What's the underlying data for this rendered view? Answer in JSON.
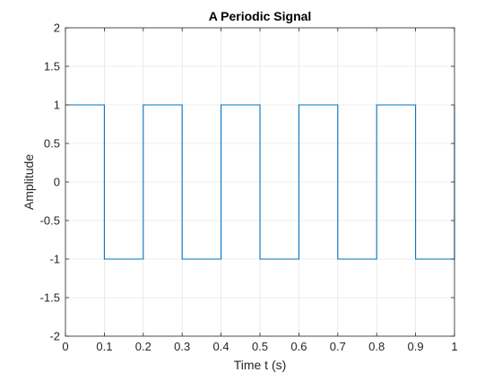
{
  "chart_data": {
    "type": "line",
    "title": "A Periodic Signal",
    "xlabel": "Time t (s)",
    "ylabel": "Amplitude",
    "xlim": [
      0,
      1
    ],
    "ylim": [
      -2,
      2
    ],
    "xticks": [
      0,
      0.1,
      0.2,
      0.3,
      0.4,
      0.5,
      0.6,
      0.7,
      0.8,
      0.9,
      1
    ],
    "xtick_labels": [
      "0",
      "0.1",
      "0.2",
      "0.3",
      "0.4",
      "0.5",
      "0.6",
      "0.7",
      "0.8",
      "0.9",
      "1"
    ],
    "yticks": [
      -2,
      -1.5,
      -1,
      -0.5,
      0,
      0.5,
      1,
      1.5,
      2
    ],
    "ytick_labels": [
      "-2",
      "-1.5",
      "-1",
      "-0.5",
      "0",
      "0.5",
      "1",
      "1.5",
      "2"
    ],
    "grid": true,
    "series": [
      {
        "color": "#0072BD",
        "x": [
          0,
          0.1,
          0.1,
          0.2,
          0.2,
          0.3,
          0.3,
          0.4,
          0.4,
          0.5,
          0.5,
          0.6,
          0.6,
          0.7,
          0.7,
          0.8,
          0.8,
          0.9,
          0.9,
          1,
          1
        ],
        "y": [
          1,
          1,
          -1,
          -1,
          1,
          1,
          -1,
          -1,
          1,
          1,
          -1,
          -1,
          1,
          1,
          -1,
          -1,
          1,
          1,
          -1,
          -1,
          1
        ]
      }
    ]
  }
}
